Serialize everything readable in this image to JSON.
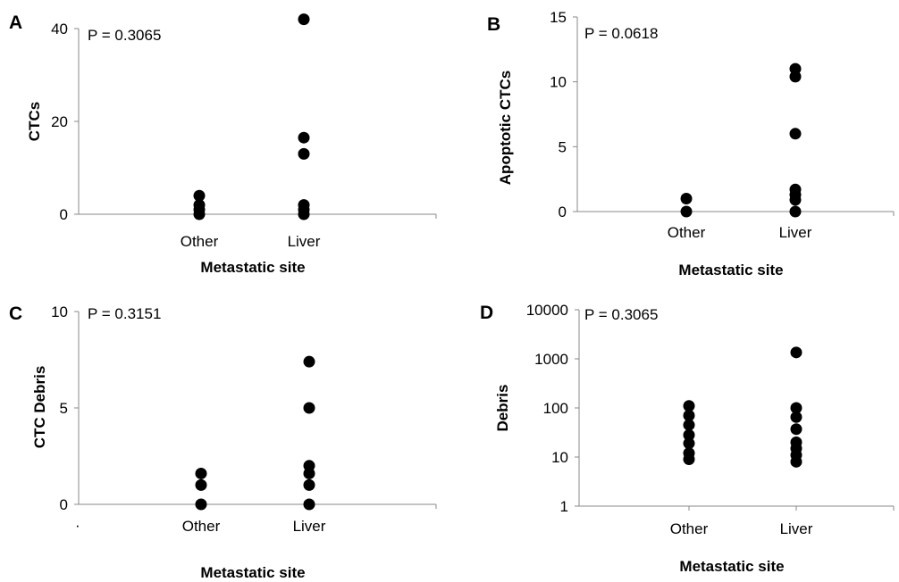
{
  "chart_data": [
    {
      "type": "scatter",
      "panel": "A",
      "p_value": "P =  0.3065",
      "xlabel": "Metastatic site",
      "ylabel": "CTCs",
      "categories": [
        "Other",
        "Liver"
      ],
      "scale": "linear",
      "ylim": [
        0,
        40
      ],
      "yticks": [
        "0",
        "20",
        "40"
      ],
      "points": [
        {
          "x": "Other",
          "y": 4
        },
        {
          "x": "Other",
          "y": 2
        },
        {
          "x": "Other",
          "y": 1
        },
        {
          "x": "Other",
          "y": 0
        },
        {
          "x": "Liver",
          "y": 42
        },
        {
          "x": "Liver",
          "y": 16.5
        },
        {
          "x": "Liver",
          "y": 13
        },
        {
          "x": "Liver",
          "y": 2
        },
        {
          "x": "Liver",
          "y": 1
        },
        {
          "x": "Liver",
          "y": 0
        }
      ]
    },
    {
      "type": "scatter",
      "panel": "B",
      "p_value": "P =  0.0618",
      "xlabel": "Metastatic site",
      "ylabel": "Apoptotic CTCs",
      "categories": [
        "Other",
        "Liver"
      ],
      "scale": "linear",
      "ylim": [
        0,
        15
      ],
      "yticks": [
        "0",
        "5",
        "10",
        "15"
      ],
      "points": [
        {
          "x": "Other",
          "y": 1
        },
        {
          "x": "Other",
          "y": 0
        },
        {
          "x": "Liver",
          "y": 11
        },
        {
          "x": "Liver",
          "y": 10.4
        },
        {
          "x": "Liver",
          "y": 6
        },
        {
          "x": "Liver",
          "y": 1.7
        },
        {
          "x": "Liver",
          "y": 1.3
        },
        {
          "x": "Liver",
          "y": 0.9
        },
        {
          "x": "Liver",
          "y": 0
        }
      ]
    },
    {
      "type": "scatter",
      "panel": "C",
      "p_value": "P =  0.3151",
      "xlabel": "Metastatic site",
      "ylabel": "CTC Debris",
      "categories": [
        "Other",
        "Liver"
      ],
      "scale": "linear",
      "ylim": [
        0,
        10
      ],
      "yticks": [
        "0",
        "5",
        "10"
      ],
      "stray_mark": "·",
      "points": [
        {
          "x": "Other",
          "y": 1.6
        },
        {
          "x": "Other",
          "y": 1
        },
        {
          "x": "Other",
          "y": 0
        },
        {
          "x": "Liver",
          "y": 7.4
        },
        {
          "x": "Liver",
          "y": 5
        },
        {
          "x": "Liver",
          "y": 2
        },
        {
          "x": "Liver",
          "y": 1.6
        },
        {
          "x": "Liver",
          "y": 1
        },
        {
          "x": "Liver",
          "y": 0
        }
      ]
    },
    {
      "type": "scatter",
      "panel": "D",
      "p_value": "P =  0.3065",
      "xlabel": "Metastatic site",
      "ylabel": "Debris",
      "categories": [
        "Other",
        "Liver"
      ],
      "scale": "log",
      "ylim": [
        1,
        10000
      ],
      "yticks": [
        "1",
        "10",
        "100",
        "1000",
        "10000"
      ],
      "points": [
        {
          "x": "Other",
          "y": 110
        },
        {
          "x": "Other",
          "y": 70
        },
        {
          "x": "Other",
          "y": 45
        },
        {
          "x": "Other",
          "y": 28
        },
        {
          "x": "Other",
          "y": 19
        },
        {
          "x": "Other",
          "y": 12
        },
        {
          "x": "Other",
          "y": 9
        },
        {
          "x": "Liver",
          "y": 1350
        },
        {
          "x": "Liver",
          "y": 100
        },
        {
          "x": "Liver",
          "y": 65
        },
        {
          "x": "Liver",
          "y": 37
        },
        {
          "x": "Liver",
          "y": 20
        },
        {
          "x": "Liver",
          "y": 15
        },
        {
          "x": "Liver",
          "y": 11
        },
        {
          "x": "Liver",
          "y": 8
        }
      ]
    }
  ]
}
